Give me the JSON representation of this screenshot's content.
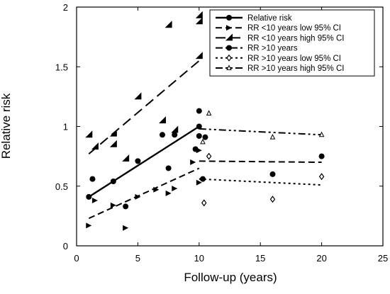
{
  "chart_data": {
    "type": "scatter",
    "title": "",
    "xlabel": "Follow-up (years)",
    "ylabel": "Relative risk",
    "xlim": [
      0,
      25
    ],
    "ylim": [
      0,
      2
    ],
    "xticks": [
      "0",
      "5",
      "10",
      "15",
      "20",
      "25"
    ],
    "yticks": [
      "0",
      "0.5",
      "1",
      "1.5",
      "2"
    ],
    "grid": false,
    "legend_position": "top-right",
    "series": [
      {
        "name": "Relative risk",
        "marker": "circle-filled",
        "line": "solid",
        "points": [
          [
            1,
            0.41
          ],
          [
            1.3,
            0.56
          ],
          [
            3,
            0.54
          ],
          [
            4,
            0.33
          ],
          [
            5,
            0.71
          ],
          [
            7,
            0.93
          ],
          [
            7.5,
            0.65
          ],
          [
            8,
            0.93
          ],
          [
            9.7,
            0.81
          ],
          [
            10,
            0.92
          ],
          [
            10,
            1.0
          ],
          [
            10,
            1.13
          ],
          [
            10.5,
            0.91
          ]
        ],
        "fit": [
          [
            1,
            0.41
          ],
          [
            10,
            1.0
          ]
        ]
      },
      {
        "name": "RR <10 years low 95% CI",
        "marker": "flag-small",
        "line": "dashed",
        "points": [
          [
            1,
            0.17
          ],
          [
            1.5,
            0.38
          ],
          [
            3,
            0.34
          ],
          [
            4,
            0.15
          ],
          [
            5,
            0.41
          ],
          [
            6.5,
            0.47
          ],
          [
            7.5,
            0.44
          ],
          [
            8,
            0.48
          ],
          [
            9.5,
            0.7
          ],
          [
            10,
            0.8
          ],
          [
            10,
            0.53
          ]
        ],
        "fit": [
          [
            1,
            0.23
          ],
          [
            10,
            0.65
          ]
        ]
      },
      {
        "name": "RR <10 years high 95% CI",
        "marker": "flag-large",
        "line": "long-dashed",
        "points": [
          [
            1,
            0.93
          ],
          [
            1.5,
            0.83
          ],
          [
            3,
            0.85
          ],
          [
            3,
            0.94
          ],
          [
            4,
            0.73
          ],
          [
            5,
            1.25
          ],
          [
            7,
            1.05
          ],
          [
            8,
            0.97
          ],
          [
            7.5,
            1.85
          ],
          [
            10,
            1.59
          ],
          [
            10,
            1.93
          ],
          [
            10,
            1.88
          ]
        ],
        "fit": [
          [
            1,
            0.77
          ],
          [
            10,
            1.55
          ]
        ]
      },
      {
        "name": "RR >10 years",
        "marker": "circle-filled",
        "line": "dash-dot",
        "points": [
          [
            10.3,
            0.56
          ],
          [
            16,
            0.6
          ],
          [
            20,
            0.75
          ]
        ],
        "fit": []
      },
      {
        "name": "RR >10 years low 95% CI",
        "marker": "diamond-open",
        "line": "dotted",
        "points": [
          [
            10.4,
            0.36
          ],
          [
            10.8,
            0.75
          ],
          [
            16,
            0.39
          ],
          [
            20,
            0.58
          ]
        ],
        "fit": [
          [
            10,
            0.56
          ],
          [
            20,
            0.51
          ]
        ]
      },
      {
        "name": "RR >10 years high 95% CI",
        "marker": "triangle-open",
        "line": "dash-dot-dot",
        "points": [
          [
            10.3,
            0.87
          ],
          [
            10.8,
            1.11
          ],
          [
            16,
            0.91
          ],
          [
            20,
            0.93
          ]
        ],
        "fit": [
          [
            10,
            0.98
          ],
          [
            20,
            0.93
          ]
        ]
      }
    ],
    "extra_lines": [
      {
        "series_index": 3,
        "line": "dashed",
        "fit": [
          [
            10,
            0.71
          ],
          [
            20,
            0.7
          ]
        ]
      }
    ]
  }
}
